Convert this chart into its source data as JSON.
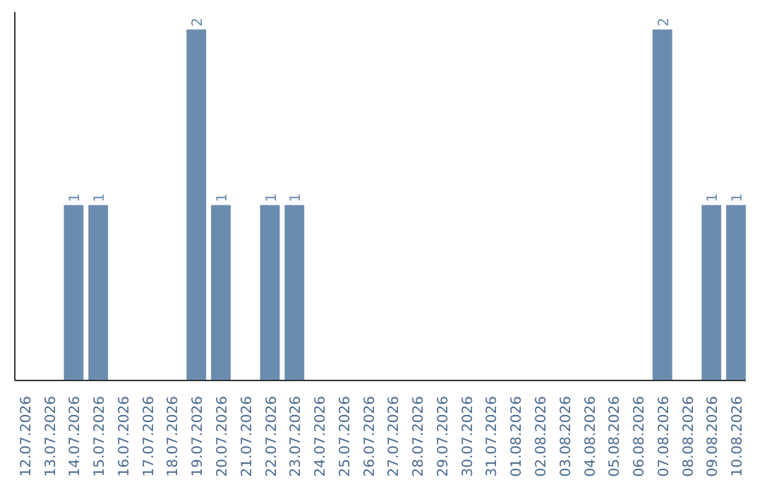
{
  "chart_data": {
    "type": "bar",
    "categories": [
      "12.07.2026",
      "13.07.2026",
      "14.07.2026",
      "15.07.2026",
      "16.07.2026",
      "17.07.2026",
      "18.07.2026",
      "19.07.2026",
      "20.07.2026",
      "21.07.2026",
      "22.07.2026",
      "23.07.2026",
      "24.07.2026",
      "25.07.2026",
      "26.07.2026",
      "27.07.2026",
      "28.07.2026",
      "29.07.2026",
      "30.07.2026",
      "31.07.2026",
      "01.08.2026",
      "02.08.2026",
      "03.08.2026",
      "04.08.2026",
      "05.08.2026",
      "06.08.2026",
      "07.08.2026",
      "08.08.2026",
      "09.08.2026",
      "10.08.2026"
    ],
    "values": [
      0,
      0,
      1,
      1,
      0,
      0,
      0,
      2,
      1,
      0,
      1,
      1,
      0,
      0,
      0,
      0,
      0,
      0,
      0,
      0,
      0,
      0,
      0,
      0,
      0,
      0,
      2,
      0,
      1,
      1
    ],
    "value_labels": [
      null,
      null,
      "1",
      "1",
      null,
      null,
      null,
      "2",
      "1",
      null,
      "1",
      "1",
      null,
      null,
      null,
      null,
      null,
      null,
      null,
      null,
      null,
      null,
      null,
      null,
      null,
      null,
      "2",
      null,
      "1",
      "1"
    ],
    "color": "#6a8caf",
    "tick_labels": "x",
    "grid": false
  }
}
